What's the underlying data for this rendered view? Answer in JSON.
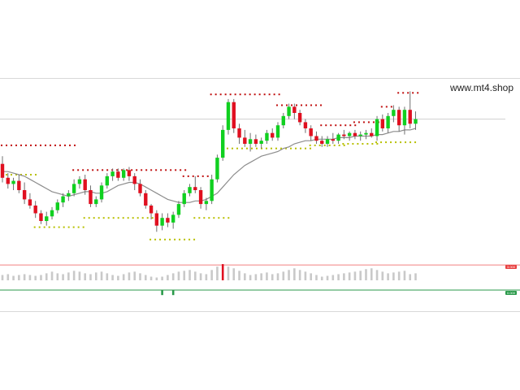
{
  "watermark": "www.mt4.shop",
  "colors": {
    "bull": "#10d020",
    "bear": "#e01020",
    "wick": "#707070",
    "ma": "#8c8c8c",
    "resistance_dots": "#c01010",
    "support_dots": "#b8c000",
    "hline": "#cfcfcf",
    "osc_bar": "#c9c9c9",
    "osc_upper_line": "#f08080",
    "osc_lower_line": "#2a9a4a"
  },
  "indicator_tags": {
    "upper": "3.000",
    "lower": "0.000"
  },
  "chart_data": {
    "type": "candlestick",
    "price_range": [
      0,
      100
    ],
    "candles": [
      {
        "o": 57,
        "h": 62,
        "l": 45,
        "c": 48
      },
      {
        "o": 48,
        "h": 51,
        "l": 41,
        "c": 44
      },
      {
        "o": 44,
        "h": 48,
        "l": 40,
        "c": 46
      },
      {
        "o": 46,
        "h": 50,
        "l": 38,
        "c": 40
      },
      {
        "o": 40,
        "h": 45,
        "l": 31,
        "c": 34
      },
      {
        "o": 34,
        "h": 38,
        "l": 28,
        "c": 30
      },
      {
        "o": 30,
        "h": 33,
        "l": 22,
        "c": 25
      },
      {
        "o": 25,
        "h": 27,
        "l": 18,
        "c": 20
      },
      {
        "o": 20,
        "h": 26,
        "l": 17,
        "c": 23
      },
      {
        "o": 23,
        "h": 29,
        "l": 21,
        "c": 27
      },
      {
        "o": 27,
        "h": 34,
        "l": 25,
        "c": 32
      },
      {
        "o": 32,
        "h": 38,
        "l": 29,
        "c": 36
      },
      {
        "o": 36,
        "h": 40,
        "l": 33,
        "c": 38
      },
      {
        "o": 38,
        "h": 47,
        "l": 36,
        "c": 44
      },
      {
        "o": 44,
        "h": 49,
        "l": 41,
        "c": 47
      },
      {
        "o": 47,
        "h": 50,
        "l": 37,
        "c": 40
      },
      {
        "o": 40,
        "h": 43,
        "l": 29,
        "c": 31
      },
      {
        "o": 31,
        "h": 36,
        "l": 29,
        "c": 34
      },
      {
        "o": 34,
        "h": 45,
        "l": 32,
        "c": 43
      },
      {
        "o": 43,
        "h": 51,
        "l": 41,
        "c": 49
      },
      {
        "o": 49,
        "h": 54,
        "l": 46,
        "c": 52
      },
      {
        "o": 52,
        "h": 54,
        "l": 46,
        "c": 48
      },
      {
        "o": 48,
        "h": 54,
        "l": 46,
        "c": 53
      },
      {
        "o": 53,
        "h": 55,
        "l": 46,
        "c": 49
      },
      {
        "o": 49,
        "h": 51,
        "l": 40,
        "c": 44
      },
      {
        "o": 44,
        "h": 47,
        "l": 36,
        "c": 38
      },
      {
        "o": 38,
        "h": 40,
        "l": 28,
        "c": 30
      },
      {
        "o": 30,
        "h": 31,
        "l": 21,
        "c": 25
      },
      {
        "o": 25,
        "h": 27,
        "l": 13,
        "c": 17
      },
      {
        "o": 17,
        "h": 25,
        "l": 14,
        "c": 22
      },
      {
        "o": 22,
        "h": 25,
        "l": 16,
        "c": 19
      },
      {
        "o": 19,
        "h": 26,
        "l": 15,
        "c": 24
      },
      {
        "o": 24,
        "h": 33,
        "l": 22,
        "c": 31
      },
      {
        "o": 31,
        "h": 40,
        "l": 29,
        "c": 38
      },
      {
        "o": 38,
        "h": 44,
        "l": 36,
        "c": 42
      },
      {
        "o": 42,
        "h": 49,
        "l": 38,
        "c": 40
      },
      {
        "o": 40,
        "h": 42,
        "l": 28,
        "c": 31
      },
      {
        "o": 31,
        "h": 35,
        "l": 27,
        "c": 33
      },
      {
        "o": 33,
        "h": 50,
        "l": 31,
        "c": 47
      },
      {
        "o": 47,
        "h": 63,
        "l": 45,
        "c": 61
      },
      {
        "o": 61,
        "h": 82,
        "l": 59,
        "c": 79
      },
      {
        "o": 79,
        "h": 99,
        "l": 76,
        "c": 97
      },
      {
        "o": 97,
        "h": 99,
        "l": 77,
        "c": 80
      },
      {
        "o": 80,
        "h": 83,
        "l": 70,
        "c": 74
      },
      {
        "o": 74,
        "h": 79,
        "l": 68,
        "c": 70
      },
      {
        "o": 70,
        "h": 77,
        "l": 65,
        "c": 73
      },
      {
        "o": 73,
        "h": 76,
        "l": 68,
        "c": 70
      },
      {
        "o": 70,
        "h": 74,
        "l": 67,
        "c": 72
      },
      {
        "o": 72,
        "h": 79,
        "l": 70,
        "c": 77
      },
      {
        "o": 77,
        "h": 80,
        "l": 72,
        "c": 74
      },
      {
        "o": 74,
        "h": 84,
        "l": 72,
        "c": 82
      },
      {
        "o": 82,
        "h": 90,
        "l": 80,
        "c": 88
      },
      {
        "o": 88,
        "h": 96,
        "l": 86,
        "c": 94
      },
      {
        "o": 94,
        "h": 96,
        "l": 86,
        "c": 90
      },
      {
        "o": 90,
        "h": 92,
        "l": 82,
        "c": 84
      },
      {
        "o": 84,
        "h": 86,
        "l": 77,
        "c": 80
      },
      {
        "o": 80,
        "h": 82,
        "l": 72,
        "c": 75
      },
      {
        "o": 75,
        "h": 78,
        "l": 70,
        "c": 72
      },
      {
        "o": 72,
        "h": 75,
        "l": 68,
        "c": 70
      },
      {
        "o": 70,
        "h": 75,
        "l": 68,
        "c": 73
      },
      {
        "o": 73,
        "h": 77,
        "l": 70,
        "c": 72
      },
      {
        "o": 72,
        "h": 77,
        "l": 70,
        "c": 76
      },
      {
        "o": 76,
        "h": 79,
        "l": 73,
        "c": 75
      },
      {
        "o": 75,
        "h": 78,
        "l": 72,
        "c": 77
      },
      {
        "o": 77,
        "h": 79,
        "l": 73,
        "c": 75
      },
      {
        "o": 75,
        "h": 78,
        "l": 72,
        "c": 76
      },
      {
        "o": 76,
        "h": 79,
        "l": 73,
        "c": 77
      },
      {
        "o": 77,
        "h": 80,
        "l": 74,
        "c": 75
      },
      {
        "o": 75,
        "h": 88,
        "l": 72,
        "c": 86
      },
      {
        "o": 86,
        "h": 89,
        "l": 78,
        "c": 80
      },
      {
        "o": 80,
        "h": 90,
        "l": 77,
        "c": 88
      },
      {
        "o": 88,
        "h": 95,
        "l": 84,
        "c": 92
      },
      {
        "o": 92,
        "h": 94,
        "l": 78,
        "c": 82
      },
      {
        "o": 82,
        "h": 94,
        "l": 76,
        "c": 92
      },
      {
        "o": 92,
        "h": 104,
        "l": 80,
        "c": 83
      },
      {
        "o": 83,
        "h": 91,
        "l": 79,
        "c": 86
      }
    ],
    "moving_average": [
      52,
      52,
      51,
      50,
      49,
      47,
      45,
      43,
      41,
      39,
      38,
      37,
      36,
      37,
      38,
      39,
      39,
      38,
      38,
      39,
      41,
      43,
      44,
      45,
      45,
      44,
      42,
      40,
      38,
      36,
      34,
      33,
      32,
      32,
      32,
      33,
      33,
      34,
      36,
      38,
      42,
      46,
      50,
      53,
      56,
      58,
      60,
      62,
      63,
      64,
      65,
      67,
      68,
      70,
      71,
      72,
      72,
      73,
      73,
      73,
      73,
      74,
      74,
      74,
      75,
      75,
      75,
      75,
      76,
      76,
      77,
      78,
      78,
      79,
      79,
      80
    ],
    "horizontal_line": 86,
    "resistance_levels": [
      {
        "from": 0,
        "to": 13,
        "y": 69
      },
      {
        "from": 13,
        "to": 33,
        "y": 53
      },
      {
        "from": 33,
        "to": 37,
        "y": 49
      },
      {
        "from": 38,
        "to": 50,
        "y": 102
      },
      {
        "from": 50,
        "to": 58,
        "y": 95
      },
      {
        "from": 58,
        "to": 64,
        "y": 82
      },
      {
        "from": 64,
        "to": 69,
        "y": 84
      },
      {
        "from": 69,
        "to": 71,
        "y": 94
      },
      {
        "from": 72,
        "to": 75,
        "y": 103
      }
    ],
    "support_levels": [
      {
        "from": 0,
        "to": 6,
        "y": 50
      },
      {
        "from": 6,
        "to": 15,
        "y": 16
      },
      {
        "from": 15,
        "to": 27,
        "y": 22
      },
      {
        "from": 27,
        "to": 35,
        "y": 8
      },
      {
        "from": 35,
        "to": 41,
        "y": 22
      },
      {
        "from": 41,
        "to": 56,
        "y": 67
      },
      {
        "from": 56,
        "to": 62,
        "y": 69
      },
      {
        "from": 62,
        "to": 68,
        "y": 70
      },
      {
        "from": 68,
        "to": 75,
        "y": 71
      }
    ],
    "oscillator": [
      1.8,
      1.9,
      1.7,
      1.8,
      1.9,
      1.8,
      1.7,
      1.8,
      2.0,
      2.2,
      2.0,
      1.9,
      2.1,
      2.3,
      2.2,
      2.0,
      1.9,
      2.1,
      2.2,
      2.0,
      1.8,
      1.7,
      1.9,
      2.1,
      2.2,
      2.0,
      1.8,
      1.6,
      1.5,
      1.6,
      1.8,
      2.0,
      2.2,
      2.3,
      2.4,
      2.2,
      2.0,
      1.9,
      2.4,
      2.8,
      3.1,
      2.8,
      2.6,
      2.3,
      2.0,
      1.8,
      1.9,
      2.0,
      2.1,
      1.9,
      2.0,
      2.2,
      2.4,
      2.6,
      2.4,
      2.2,
      2.0,
      1.8,
      1.6,
      1.7,
      1.8,
      1.9,
      2.0,
      2.1,
      2.2,
      2.3,
      2.5,
      2.6,
      2.4,
      2.2,
      2.0,
      2.1,
      2.2,
      2.3,
      1.9,
      2.0
    ],
    "oscillator_range": [
      0,
      3
    ],
    "oscillator_negative_marks": [
      {
        "index": 29,
        "value": -0.6
      },
      {
        "index": 31,
        "value": -0.6
      }
    ]
  }
}
